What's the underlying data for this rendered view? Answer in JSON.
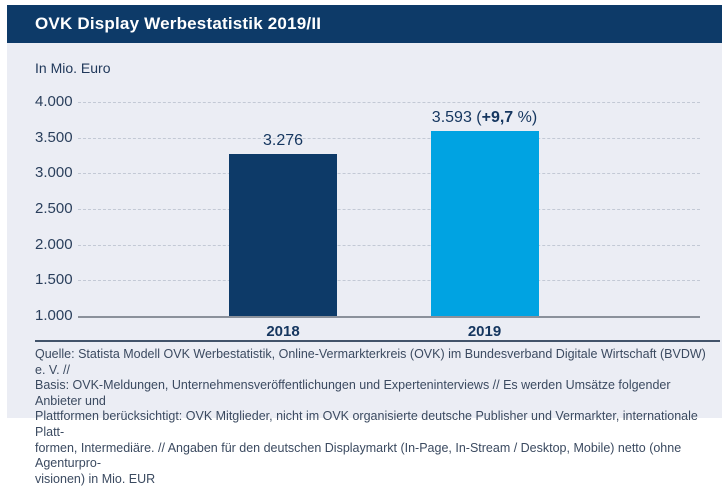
{
  "header": {
    "title": "OVK Display Werbestatistik 2019/II"
  },
  "chart_data": {
    "type": "bar",
    "title": "OVK Display Werbestatistik 2019/II",
    "unit_label": "In Mio. Euro",
    "categories": [
      "2018",
      "2019"
    ],
    "values": [
      3276,
      3593
    ],
    "value_label_parts": [
      [
        {
          "t": "3.276",
          "b": false
        }
      ],
      [
        {
          "t": "3.593 (",
          "b": false
        },
        {
          "t": "+9,7",
          "b": true
        },
        {
          "t": " %)",
          "b": false
        }
      ]
    ],
    "ylim": [
      1000,
      4000
    ],
    "yticks": [
      4000,
      3500,
      3000,
      2500,
      2000,
      1500,
      1000
    ],
    "ytick_labels": [
      "4.000",
      "3.500",
      "3.000",
      "2.500",
      "2.000",
      "1.500",
      "1.000"
    ],
    "bar_colors": [
      "#0d3a68",
      "#00a3e2"
    ],
    "grid": "horizontal dashed",
    "legend": "none"
  },
  "colors": {
    "header_background": "#0d3a68",
    "panel_background": "#ebedf4",
    "bar_2018": "#0d3a68",
    "bar_2019": "#00a3e2",
    "text_navy": "#15365f"
  },
  "footer": {
    "lines": [
      "Quelle: Statista Modell OVK Werbestatistik, Online-Vermarkterkreis (OVK) im Bundesverband Digitale Wirtschaft (BVDW) e. V. //",
      "Basis: OVK-Meldungen, Unternehmensveröffentlichungen und Experteninterviews // Es werden Umsätze folgender Anbieter und",
      "Plattformen berücksichtigt: OVK Mitglieder, nicht im OVK organisierte deutsche Publisher und Vermarkter, internationale Platt-",
      "formen, Intermediäre. // Angaben für den deutschen Displaymarkt (In-Page, In-Stream / Desktop, Mobile) netto (ohne Agenturpro-",
      "visionen) in Mio. EUR"
    ]
  }
}
